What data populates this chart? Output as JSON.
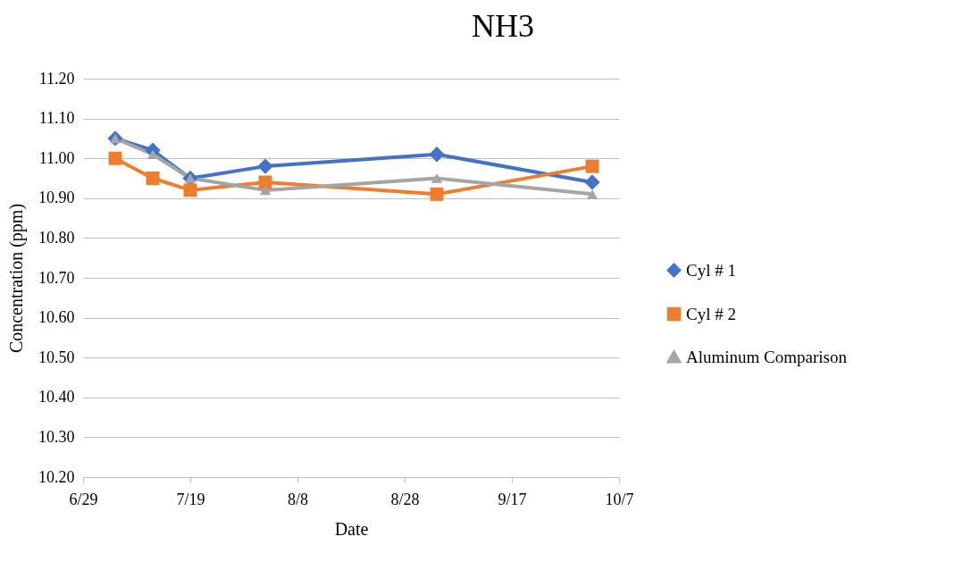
{
  "chart_data": {
    "type": "line",
    "title": "NH3",
    "xlabel": "Date",
    "ylabel": "Concentration (ppm)",
    "x": [
      "--07-05",
      "--07-12",
      "--07-19",
      "--08-02",
      "--09-03",
      "--10-02"
    ],
    "series": [
      {
        "name": "Cyl # 1",
        "color": "#4472c4",
        "marker": "diamond",
        "values": [
          11.05,
          11.02,
          10.95,
          10.98,
          11.01,
          10.94
        ]
      },
      {
        "name": "Cyl # 2",
        "color": "#ed7d31",
        "marker": "square",
        "values": [
          11.0,
          10.95,
          10.92,
          10.94,
          10.91,
          10.98
        ]
      },
      {
        "name": "Aluminum Comparison",
        "color": "#a5a5a5",
        "marker": "triangle",
        "values": [
          11.05,
          11.01,
          10.95,
          10.92,
          10.95,
          10.91
        ]
      }
    ],
    "xlim": [
      "--06-29",
      "--10-07"
    ],
    "xticks": [
      {
        "value": "--06-29",
        "label": "6/29"
      },
      {
        "value": "--07-19",
        "label": "7/19"
      },
      {
        "value": "--08-08",
        "label": "8/8"
      },
      {
        "value": "--08-28",
        "label": "8/28"
      },
      {
        "value": "--09-17",
        "label": "9/17"
      },
      {
        "value": "--10-07",
        "label": "10/7"
      }
    ],
    "ylim": [
      10.2,
      11.2
    ],
    "yticks": [
      {
        "value": 10.2,
        "label": "10.20"
      },
      {
        "value": 10.3,
        "label": "10.30"
      },
      {
        "value": 10.4,
        "label": "10.40"
      },
      {
        "value": 10.5,
        "label": "10.50"
      },
      {
        "value": 10.6,
        "label": "10.60"
      },
      {
        "value": 10.7,
        "label": "10.70"
      },
      {
        "value": 10.8,
        "label": "10.80"
      },
      {
        "value": 10.9,
        "label": "10.90"
      },
      {
        "value": 11.0,
        "label": "11.00"
      },
      {
        "value": 11.1,
        "label": "11.10"
      },
      {
        "value": 11.2,
        "label": "11.20"
      }
    ],
    "grid": "y",
    "legend": "right",
    "line_style": "solid"
  }
}
